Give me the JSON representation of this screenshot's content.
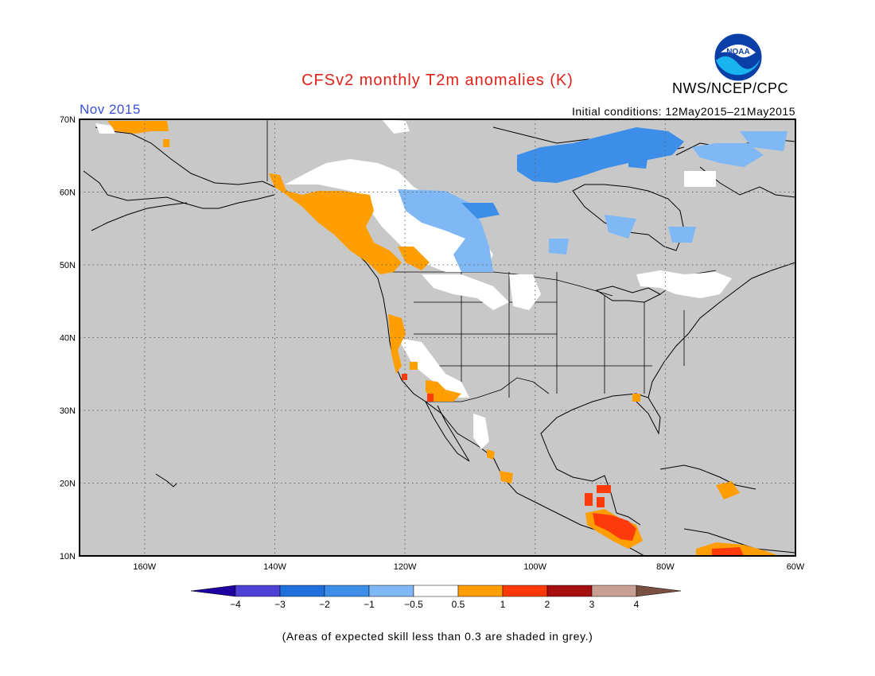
{
  "header": {
    "title": "CFSv2 monthly T2m anomalies (K)",
    "org": "NWS/NCEP/CPC",
    "month": "Nov 2015",
    "initial_conditions": "Initial conditions: 12May2015–21May2015",
    "logo_text": "NOAA"
  },
  "map": {
    "lon_range": [
      -170,
      -60
    ],
    "lat_range": [
      10,
      70
    ],
    "lat_labels": [
      "70N",
      "60N",
      "50N",
      "40N",
      "30N",
      "20N",
      "10N"
    ],
    "lon_labels": [
      "160W",
      "140W",
      "120W",
      "100W",
      "80W",
      "60W"
    ],
    "background_color": "#c8c8c8",
    "anomaly_patches": [
      {
        "category": "0.5 to 1",
        "color": "#ff9e00",
        "region": "Pacific Northwest / British Columbia coast"
      },
      {
        "category": "0.5 to 1",
        "color": "#ff9e00",
        "region": "Northwest Alaska"
      },
      {
        "category": "0.5 to 1",
        "color": "#ff9e00",
        "region": "California coast"
      },
      {
        "category": "1 to 2",
        "color": "#ff3a0a",
        "region": "Central America"
      },
      {
        "category": "1 to 2",
        "color": "#ff3a0a",
        "region": "Northern Venezuela"
      },
      {
        "category": "-1 to -0.5",
        "color": "#7fb8f5",
        "region": "Prairies / Hudson Bay"
      },
      {
        "category": "-2 to -1",
        "color": "#3d8ee8",
        "region": "Baffin Island / Nunavut"
      },
      {
        "category": "-0.5 to 0.5",
        "color": "#ffffff",
        "region": "Western Canada, Great Basin, Quebec"
      }
    ]
  },
  "colorbar": {
    "ticks": [
      "−4",
      "−3",
      "−2",
      "−1",
      "−0.5",
      "0.5",
      "1",
      "2",
      "3",
      "4"
    ],
    "colors": [
      "#1e00a0",
      "#4d40d5",
      "#1f6fdc",
      "#3d8ee8",
      "#7fb8f5",
      "#ffffff",
      "#ff9e00",
      "#ff3a0a",
      "#a60f0f",
      "#c8a093",
      "#7a5040"
    ]
  },
  "footnote": "(Areas of expected skill less than 0.3 are shaded in grey.)"
}
